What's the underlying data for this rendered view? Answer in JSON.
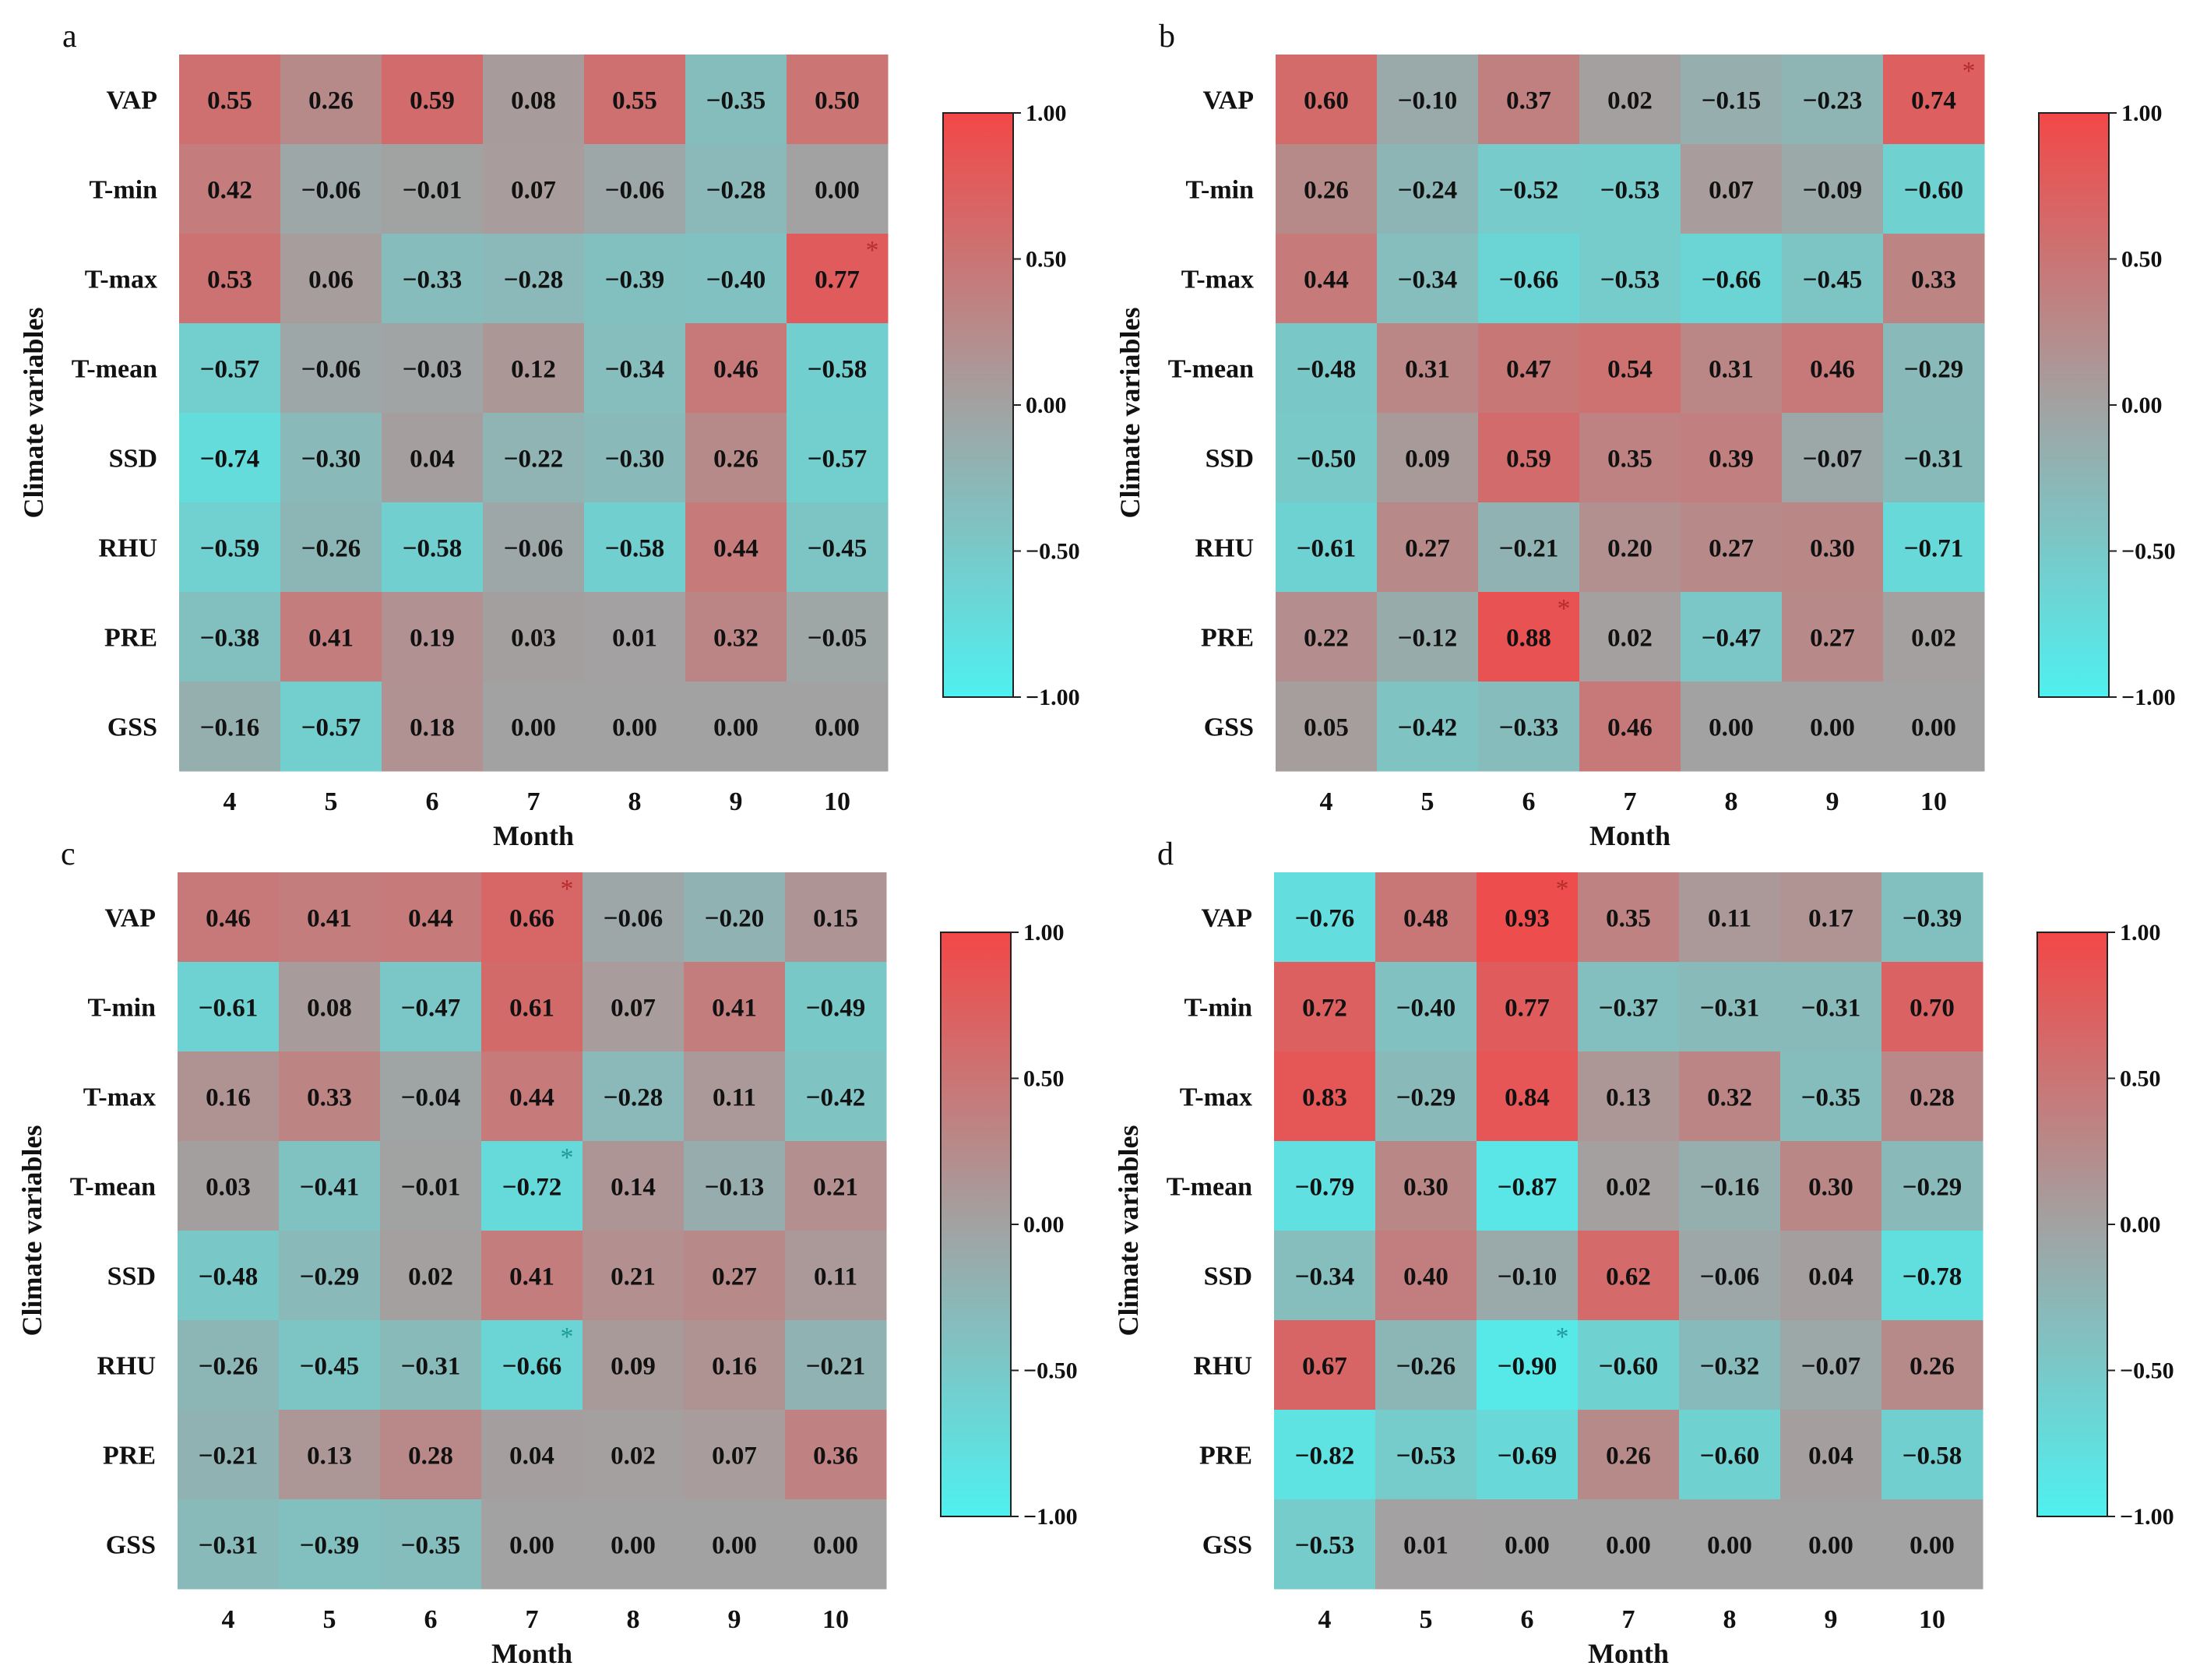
{
  "colorbar": {
    "min": -1.0,
    "max": 1.0,
    "ticks": [
      "1.00",
      "0.50",
      "0.00",
      "−0.50",
      "−1.00"
    ],
    "tick_values": [
      1.0,
      0.5,
      0.0,
      -0.5,
      -1.0
    ],
    "colors": {
      "low": "#4ff0f0",
      "mid": "#a2a2a2",
      "high": "#f34747"
    }
  },
  "significance_marker": "*",
  "chart_data": [
    {
      "type": "heatmap",
      "panel": "a",
      "xlabel": "Month",
      "ylabel": "Climate variables",
      "x_categories": [
        "4",
        "5",
        "6",
        "7",
        "8",
        "9",
        "10"
      ],
      "y_categories": [
        "VAP",
        "T-min",
        "T-max",
        "T-mean",
        "SSD",
        "RHU",
        "PRE",
        "GSS"
      ],
      "values": [
        [
          0.55,
          0.26,
          0.59,
          0.08,
          0.55,
          -0.35,
          0.5
        ],
        [
          0.42,
          -0.06,
          -0.01,
          0.07,
          -0.06,
          -0.28,
          0.0
        ],
        [
          0.53,
          0.06,
          -0.33,
          -0.28,
          -0.39,
          -0.4,
          0.77
        ],
        [
          -0.57,
          -0.06,
          -0.03,
          0.12,
          -0.34,
          0.46,
          -0.58
        ],
        [
          -0.74,
          -0.3,
          0.04,
          -0.22,
          -0.3,
          0.26,
          -0.57
        ],
        [
          -0.59,
          -0.26,
          -0.58,
          -0.06,
          -0.58,
          0.44,
          -0.45
        ],
        [
          -0.38,
          0.41,
          0.19,
          0.03,
          0.01,
          0.32,
          -0.05
        ],
        [
          -0.16,
          -0.57,
          0.18,
          0.0,
          0.0,
          0.0,
          0.0
        ]
      ],
      "labels": [
        [
          "0.55",
          "0.26",
          "0.59",
          "0.08",
          "0.55",
          "−0.35",
          "0.50"
        ],
        [
          "0.42",
          "−0.06",
          "−0.01",
          "0.07",
          "−0.06",
          "−0.28",
          "0.00"
        ],
        [
          "0.53",
          "0.06",
          "−0.33",
          "−0.28",
          "−0.39",
          "−0.40",
          "0.77"
        ],
        [
          "−0.57",
          "−0.06",
          "−0.03",
          "0.12",
          "−0.34",
          "0.46",
          "−0.58"
        ],
        [
          "−0.74",
          "−0.30",
          "0.04",
          "−0.22",
          "−0.30",
          "0.26",
          "−0.57"
        ],
        [
          "−0.59",
          "−0.26",
          "−0.58",
          "−0.06",
          "−0.58",
          "0.44",
          "−0.45"
        ],
        [
          "−0.38",
          "0.41",
          "0.19",
          "0.03",
          "0.01",
          "0.32",
          "−0.05"
        ],
        [
          "−0.16",
          "−0.57",
          "0.18",
          "0.00",
          "0.00",
          "0.00",
          "0.00"
        ]
      ],
      "significant": [
        [
          2,
          6
        ]
      ]
    },
    {
      "type": "heatmap",
      "panel": "b",
      "xlabel": "Month",
      "ylabel": "Climate variables",
      "x_categories": [
        "4",
        "5",
        "6",
        "7",
        "8",
        "9",
        "10"
      ],
      "y_categories": [
        "VAP",
        "T-min",
        "T-max",
        "T-mean",
        "SSD",
        "RHU",
        "PRE",
        "GSS"
      ],
      "values": [
        [
          0.6,
          -0.1,
          0.37,
          0.02,
          -0.15,
          -0.23,
          0.74
        ],
        [
          0.26,
          -0.24,
          -0.52,
          -0.53,
          0.07,
          -0.09,
          -0.6
        ],
        [
          0.44,
          -0.34,
          -0.66,
          -0.53,
          -0.66,
          -0.45,
          0.33
        ],
        [
          -0.48,
          0.31,
          0.47,
          0.54,
          0.31,
          0.46,
          -0.29
        ],
        [
          -0.5,
          0.09,
          0.59,
          0.35,
          0.39,
          -0.07,
          -0.31
        ],
        [
          -0.61,
          0.27,
          -0.21,
          0.2,
          0.27,
          0.3,
          -0.71
        ],
        [
          0.22,
          -0.12,
          0.88,
          0.02,
          -0.47,
          0.27,
          0.02
        ],
        [
          0.05,
          -0.42,
          -0.33,
          0.46,
          0.0,
          0.0,
          0.0
        ]
      ],
      "labels": [
        [
          "0.60",
          "−0.10",
          "0.37",
          "0.02",
          "−0.15",
          "−0.23",
          "0.74"
        ],
        [
          "0.26",
          "−0.24",
          "−0.52",
          "−0.53",
          "0.07",
          "−0.09",
          "−0.60"
        ],
        [
          "0.44",
          "−0.34",
          "−0.66",
          "−0.53",
          "−0.66",
          "−0.45",
          "0.33"
        ],
        [
          "−0.48",
          "0.31",
          "0.47",
          "0.54",
          "0.31",
          "0.46",
          "−0.29"
        ],
        [
          "−0.50",
          "0.09",
          "0.59",
          "0.35",
          "0.39",
          "−0.07",
          "−0.31"
        ],
        [
          "−0.61",
          "0.27",
          "−0.21",
          "0.20",
          "0.27",
          "0.30",
          "−0.71"
        ],
        [
          "0.22",
          "−0.12",
          "0.88",
          "0.02",
          "−0.47",
          "0.27",
          "0.02"
        ],
        [
          "0.05",
          "−0.42",
          "−0.33",
          "0.46",
          "0.00",
          "0.00",
          "0.00"
        ]
      ],
      "significant": [
        [
          0,
          6
        ],
        [
          6,
          2
        ]
      ]
    },
    {
      "type": "heatmap",
      "panel": "c",
      "xlabel": "Month",
      "ylabel": "Climate variables",
      "x_categories": [
        "4",
        "5",
        "6",
        "7",
        "8",
        "9",
        "10"
      ],
      "y_categories": [
        "VAP",
        "T-min",
        "T-max",
        "T-mean",
        "SSD",
        "RHU",
        "PRE",
        "GSS"
      ],
      "values": [
        [
          0.46,
          0.41,
          0.44,
          0.66,
          -0.06,
          -0.2,
          0.15
        ],
        [
          -0.61,
          0.08,
          -0.47,
          0.61,
          0.07,
          0.41,
          -0.49
        ],
        [
          0.16,
          0.33,
          -0.04,
          0.44,
          -0.28,
          0.11,
          -0.42
        ],
        [
          0.03,
          -0.41,
          -0.01,
          -0.72,
          0.14,
          -0.13,
          0.21
        ],
        [
          -0.48,
          -0.29,
          0.02,
          0.41,
          0.21,
          0.27,
          0.11
        ],
        [
          -0.26,
          -0.45,
          -0.31,
          -0.66,
          0.09,
          0.16,
          -0.21
        ],
        [
          -0.21,
          0.13,
          0.28,
          0.04,
          0.02,
          0.07,
          0.36
        ],
        [
          -0.31,
          -0.39,
          -0.35,
          0.0,
          0.0,
          0.0,
          0.0
        ]
      ],
      "labels": [
        [
          "0.46",
          "0.41",
          "0.44",
          "0.66",
          "−0.06",
          "−0.20",
          "0.15"
        ],
        [
          "−0.61",
          "0.08",
          "−0.47",
          "0.61",
          "0.07",
          "0.41",
          "−0.49"
        ],
        [
          "0.16",
          "0.33",
          "−0.04",
          "0.44",
          "−0.28",
          "0.11",
          "−0.42"
        ],
        [
          "0.03",
          "−0.41",
          "−0.01",
          "−0.72",
          "0.14",
          "−0.13",
          "0.21"
        ],
        [
          "−0.48",
          "−0.29",
          "0.02",
          "0.41",
          "0.21",
          "0.27",
          "0.11"
        ],
        [
          "−0.26",
          "−0.45",
          "−0.31",
          "−0.66",
          "0.09",
          "0.16",
          "−0.21"
        ],
        [
          "−0.21",
          "0.13",
          "0.28",
          "0.04",
          "0.02",
          "0.07",
          "0.36"
        ],
        [
          "−0.31",
          "−0.39",
          "−0.35",
          "0.00",
          "0.00",
          "0.00",
          "0.00"
        ]
      ],
      "significant": [
        [
          0,
          3
        ],
        [
          3,
          3
        ],
        [
          5,
          3
        ]
      ]
    },
    {
      "type": "heatmap",
      "panel": "d",
      "xlabel": "Month",
      "ylabel": "Climate variables",
      "x_categories": [
        "4",
        "5",
        "6",
        "7",
        "8",
        "9",
        "10"
      ],
      "y_categories": [
        "VAP",
        "T-min",
        "T-max",
        "T-mean",
        "SSD",
        "RHU",
        "PRE",
        "GSS"
      ],
      "values": [
        [
          -0.76,
          0.48,
          0.93,
          0.35,
          0.11,
          0.17,
          -0.39
        ],
        [
          0.72,
          -0.4,
          0.77,
          -0.37,
          -0.31,
          -0.31,
          0.7
        ],
        [
          0.83,
          -0.29,
          0.84,
          0.13,
          0.32,
          -0.35,
          0.28
        ],
        [
          -0.79,
          0.3,
          -0.87,
          0.02,
          -0.16,
          0.3,
          -0.29
        ],
        [
          -0.34,
          0.4,
          -0.1,
          0.62,
          -0.06,
          0.04,
          -0.78
        ],
        [
          0.67,
          -0.26,
          -0.9,
          -0.6,
          -0.32,
          -0.07,
          0.26
        ],
        [
          -0.82,
          -0.53,
          -0.69,
          0.26,
          -0.6,
          0.04,
          -0.58
        ],
        [
          -0.53,
          0.01,
          0.0,
          0.0,
          0.0,
          0.0,
          0.0
        ]
      ],
      "labels": [
        [
          "−0.76",
          "0.48",
          "0.93",
          "0.35",
          "0.11",
          "0.17",
          "−0.39"
        ],
        [
          "0.72",
          "−0.40",
          "0.77",
          "−0.37",
          "−0.31",
          "−0.31",
          "0.70"
        ],
        [
          "0.83",
          "−0.29",
          "0.84",
          "0.13",
          "0.32",
          "−0.35",
          "0.28"
        ],
        [
          "−0.79",
          "0.30",
          "−0.87",
          "0.02",
          "−0.16",
          "0.30",
          "−0.29"
        ],
        [
          "−0.34",
          "0.40",
          "−0.10",
          "0.62",
          "−0.06",
          "0.04",
          "−0.78"
        ],
        [
          "0.67",
          "−0.26",
          "−0.90",
          "−0.60",
          "−0.32",
          "−0.07",
          "0.26"
        ],
        [
          "−0.82",
          "−0.53",
          "−0.69",
          "0.26",
          "−0.60",
          "0.04",
          "−0.58"
        ],
        [
          "−0.53",
          "0.01",
          "0.00",
          "0.00",
          "0.00",
          "0.00",
          "0.00"
        ]
      ],
      "significant": [
        [
          0,
          2
        ],
        [
          5,
          2
        ]
      ]
    }
  ]
}
